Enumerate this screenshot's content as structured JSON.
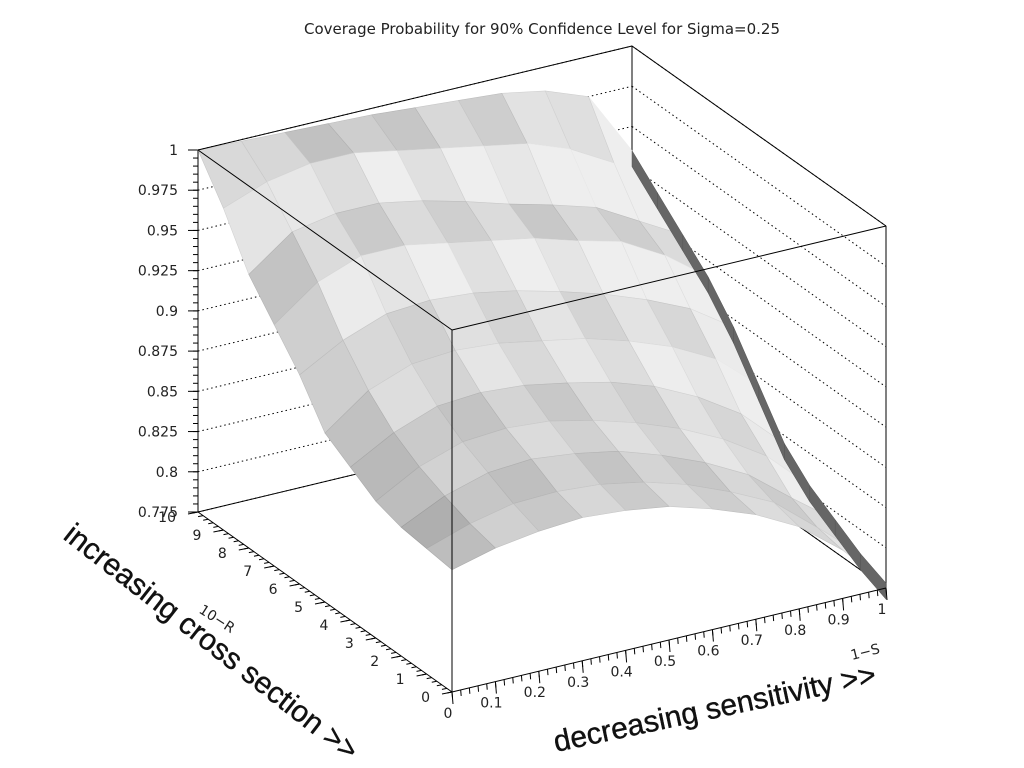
{
  "chart_data": {
    "type": "surface3d",
    "title": "Coverage Probability for 90% Confidence Level for Sigma=0.25",
    "z_axis": {
      "range": [
        0.775,
        1.0
      ],
      "ticks": [
        "0.775",
        "0.8",
        "0.825",
        "0.85",
        "0.875",
        "0.9",
        "0.925",
        "0.95",
        "0.975",
        "1"
      ]
    },
    "x_axis": {
      "name": "1−S",
      "range": [
        0,
        1
      ],
      "ticks": [
        "0",
        "0.1",
        "0.2",
        "0.3",
        "0.4",
        "0.5",
        "0.6",
        "0.7",
        "0.8",
        "0.9",
        "1"
      ],
      "caption": "decreasing sensitivity >>"
    },
    "y_axis": {
      "name": "10−R",
      "range": [
        0,
        10
      ],
      "ticks": [
        "0",
        "1",
        "2",
        "3",
        "4",
        "5",
        "6",
        "7",
        "8",
        "9",
        "10"
      ],
      "caption": "increasing cross section >>"
    },
    "series": [
      {
        "y": 10,
        "x": [
          0,
          0.1,
          0.2,
          0.3,
          0.4,
          0.5,
          0.6,
          0.7,
          0.8,
          0.9,
          1.0
        ],
        "z": [
          1.0,
          0.999,
          0.998,
          0.997,
          0.996,
          0.994,
          0.992,
          0.99,
          0.985,
          0.975,
          0.935
        ]
      },
      {
        "y": 9,
        "x": [
          0,
          0.1,
          0.2,
          0.3,
          0.4,
          0.5,
          0.6,
          0.7,
          0.8,
          0.9,
          1.0
        ],
        "z": [
          0.975,
          0.985,
          0.99,
          0.99,
          0.985,
          0.98,
          0.975,
          0.97,
          0.96,
          0.945,
          0.92
        ]
      },
      {
        "y": 8,
        "x": [
          0,
          0.1,
          0.2,
          0.3,
          0.4,
          0.5,
          0.6,
          0.7,
          0.8,
          0.9,
          1.0
        ],
        "z": [
          0.945,
          0.965,
          0.97,
          0.97,
          0.965,
          0.958,
          0.95,
          0.943,
          0.935,
          0.92,
          0.905
        ]
      },
      {
        "y": 7,
        "x": [
          0,
          0.1,
          0.2,
          0.3,
          0.4,
          0.5,
          0.6,
          0.7,
          0.8,
          0.9,
          1.0
        ],
        "z": [
          0.925,
          0.945,
          0.955,
          0.955,
          0.95,
          0.945,
          0.94,
          0.932,
          0.925,
          0.91,
          0.89
        ]
      },
      {
        "y": 6,
        "x": [
          0,
          0.1,
          0.2,
          0.3,
          0.4,
          0.5,
          0.6,
          0.7,
          0.8,
          0.9,
          1.0
        ],
        "z": [
          0.905,
          0.92,
          0.93,
          0.932,
          0.93,
          0.925,
          0.918,
          0.91,
          0.9,
          0.888,
          0.87
        ]
      },
      {
        "y": 5,
        "x": [
          0,
          0.1,
          0.2,
          0.3,
          0.4,
          0.5,
          0.6,
          0.7,
          0.8,
          0.9,
          1.0
        ],
        "z": [
          0.88,
          0.9,
          0.91,
          0.912,
          0.91,
          0.905,
          0.9,
          0.892,
          0.882,
          0.868,
          0.845
        ]
      },
      {
        "y": 4,
        "x": [
          0,
          0.1,
          0.2,
          0.3,
          0.4,
          0.5,
          0.6,
          0.7,
          0.8,
          0.9,
          1.0
        ],
        "z": [
          0.87,
          0.885,
          0.895,
          0.897,
          0.895,
          0.89,
          0.884,
          0.875,
          0.862,
          0.845,
          0.82
        ]
      },
      {
        "y": 3,
        "x": [
          0,
          0.1,
          0.2,
          0.3,
          0.4,
          0.5,
          0.6,
          0.7,
          0.8,
          0.9,
          1.0
        ],
        "z": [
          0.86,
          0.875,
          0.884,
          0.886,
          0.884,
          0.878,
          0.87,
          0.86,
          0.847,
          0.83,
          0.805
        ]
      },
      {
        "y": 2,
        "x": [
          0,
          0.1,
          0.2,
          0.3,
          0.4,
          0.5,
          0.6,
          0.7,
          0.8,
          0.9,
          1.0
        ],
        "z": [
          0.855,
          0.868,
          0.876,
          0.878,
          0.875,
          0.87,
          0.861,
          0.85,
          0.836,
          0.815,
          0.795
        ]
      },
      {
        "y": 1,
        "x": [
          0,
          0.1,
          0.2,
          0.3,
          0.4,
          0.5,
          0.6,
          0.7,
          0.8,
          0.9,
          1.0
        ],
        "z": [
          0.853,
          0.862,
          0.868,
          0.869,
          0.867,
          0.862,
          0.854,
          0.843,
          0.83,
          0.808,
          0.785
        ]
      },
      {
        "y": 0,
        "x": [
          0,
          0.1,
          0.2,
          0.3,
          0.4,
          0.5,
          0.6,
          0.7,
          0.8,
          0.9,
          1.0
        ],
        "z": [
          0.851,
          0.858,
          0.862,
          0.864,
          0.862,
          0.858,
          0.85,
          0.84,
          0.826,
          0.805,
          0.778
        ]
      }
    ],
    "grid": true,
    "colors": {
      "surface_light": "#eeeeee",
      "surface_dark": "#7a7a7a",
      "frame": "#000000"
    }
  }
}
